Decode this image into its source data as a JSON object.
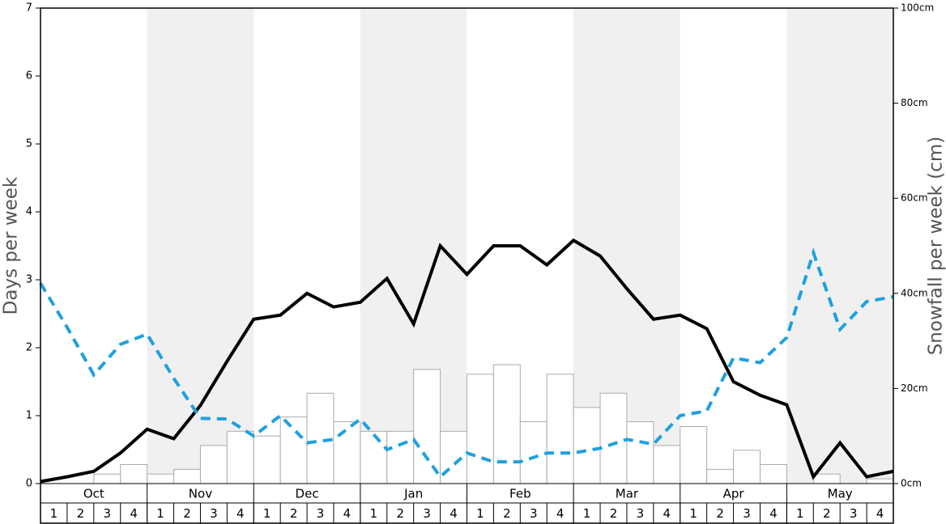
{
  "chart_data": {
    "type": "bar_line",
    "y_label": "Days per week",
    "y2_label": "Snowfall per week (cm)",
    "months": [
      "Oct",
      "Nov",
      "Dec",
      "Jan",
      "Feb",
      "Mar",
      "Apr",
      "May"
    ],
    "weeks": [
      1,
      2,
      3,
      4,
      1,
      2,
      3,
      4,
      1,
      2,
      3,
      4,
      1,
      2,
      3,
      4,
      1,
      2,
      3,
      4,
      1,
      2,
      3,
      4,
      1,
      2,
      3,
      4,
      1,
      2,
      3,
      4
    ],
    "band_color": "#f0f0f0",
    "xlim": [
      0,
      32
    ],
    "ylim": [
      0,
      7
    ],
    "yticks": [
      0,
      1,
      2,
      3,
      4,
      5,
      6,
      7
    ],
    "y2lim": [
      0,
      100
    ],
    "y2ticks": [
      {
        "value": 0,
        "label": "0cm"
      },
      {
        "value": 20,
        "label": "20cm"
      },
      {
        "value": 40,
        "label": "40cm"
      },
      {
        "value": 60,
        "label": "60cm"
      },
      {
        "value": 80,
        "label": "80cm"
      },
      {
        "value": 100,
        "label": "100cm"
      }
    ],
    "bars": {
      "axis": "y2",
      "color": "#ffffff",
      "edge_color": "#aaaaaa",
      "values": [
        0,
        0,
        2,
        4,
        2,
        3,
        8,
        11,
        10,
        14,
        19,
        13,
        11,
        11,
        24,
        11,
        23,
        25,
        13,
        23,
        16,
        19,
        13,
        8,
        12,
        3,
        7,
        4,
        0,
        2,
        0,
        1
      ]
    },
    "x": [
      0,
      1,
      2,
      3,
      4,
      5,
      6,
      7,
      8,
      9,
      10,
      11,
      12,
      13,
      14,
      15,
      16,
      17,
      18,
      19,
      20,
      21,
      22,
      23,
      24,
      25,
      26,
      27,
      28,
      29,
      30,
      31,
      32
    ],
    "series": [
      {
        "color": "#000000",
        "dashed": false,
        "values": [
          0.03,
          0.1,
          0.18,
          0.45,
          0.8,
          0.66,
          1.15,
          1.8,
          2.42,
          2.48,
          2.8,
          2.6,
          2.67,
          3.02,
          2.35,
          3.5,
          3.08,
          3.5,
          3.5,
          3.22,
          3.58,
          3.35,
          2.87,
          2.42,
          2.48,
          2.28,
          1.5,
          1.3,
          1.16,
          0.1,
          0.6,
          0.1,
          0.18
        ]
      },
      {
        "color": "#1fa0e0",
        "dashed": true,
        "values": [
          2.95,
          2.3,
          1.6,
          2.05,
          2.2,
          1.55,
          0.96,
          0.95,
          0.7,
          1.0,
          0.6,
          0.65,
          0.95,
          0.5,
          0.65,
          0.1,
          0.45,
          0.32,
          0.32,
          0.45,
          0.45,
          0.52,
          0.65,
          0.58,
          1.0,
          1.07,
          1.85,
          1.78,
          2.15,
          3.4,
          2.27,
          2.68,
          2.75
        ]
      }
    ]
  }
}
